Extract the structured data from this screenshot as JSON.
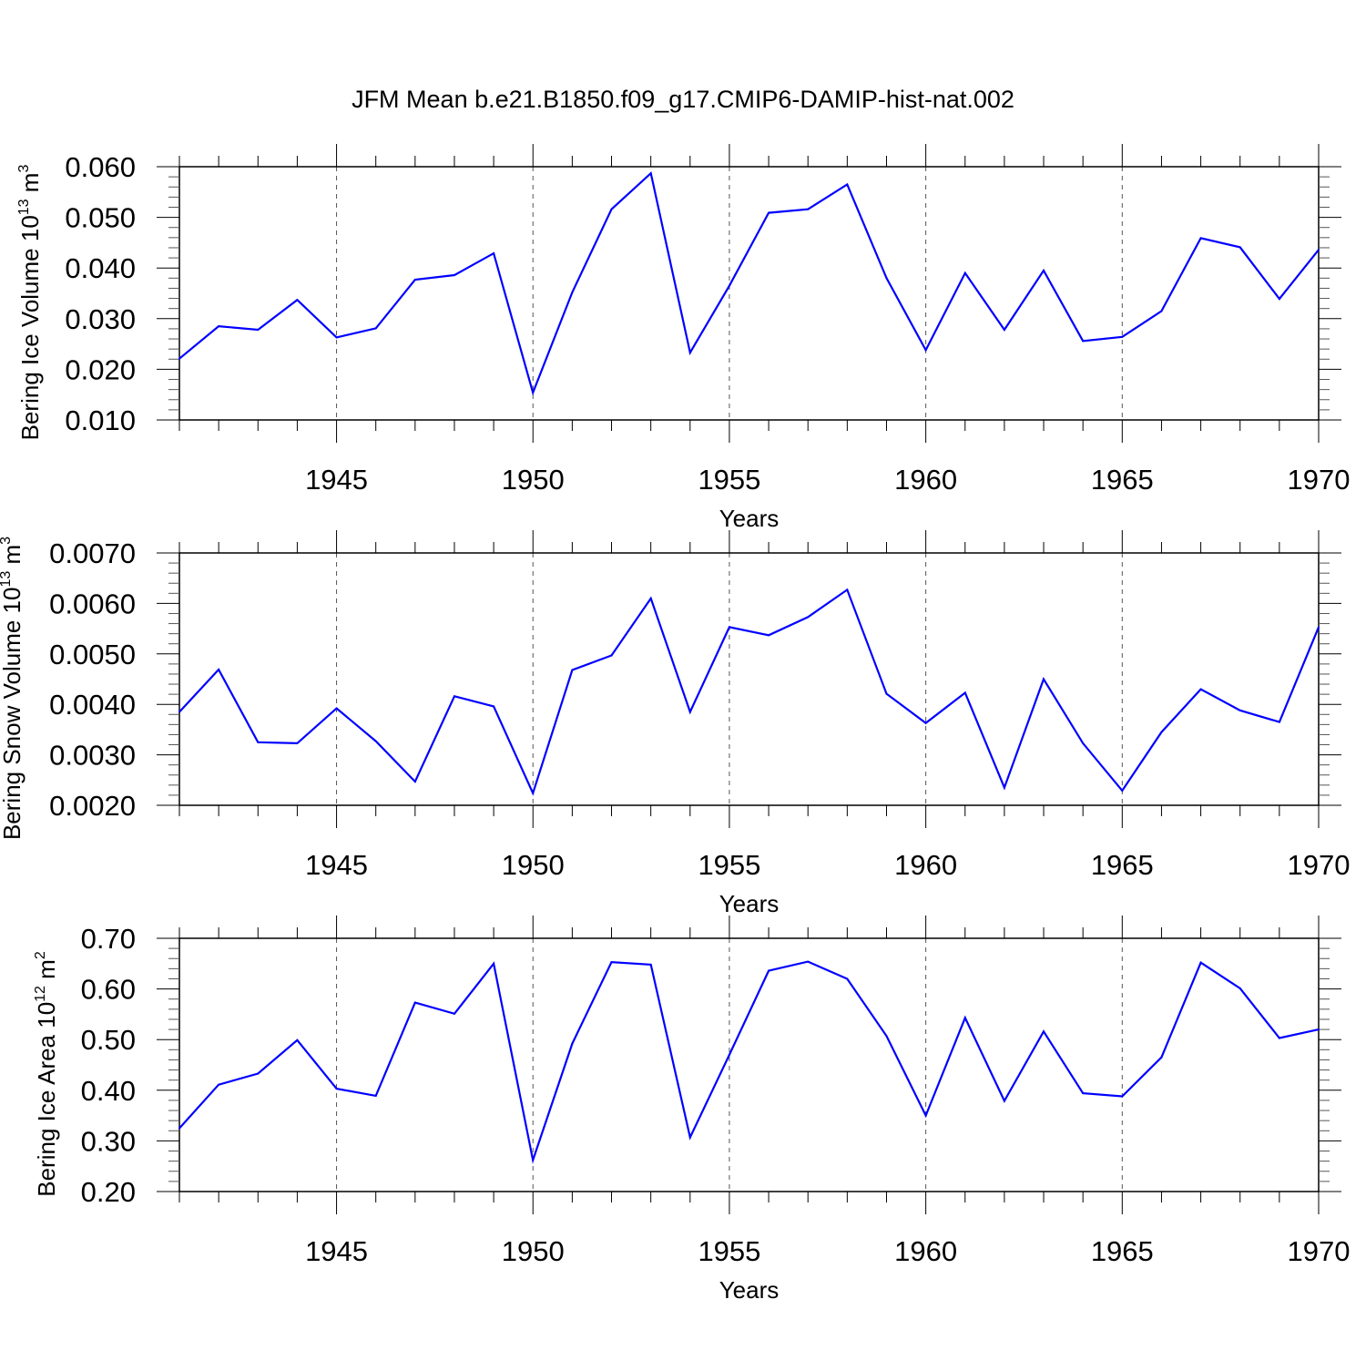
{
  "title": "JFM Mean b.e21.B1850.f09_g17.CMIP6-DAMIP-hist-nat.002",
  "colors": {
    "line": "#0000ff",
    "axis": "#000000",
    "grid": "#555555"
  },
  "chart_data": [
    {
      "type": "line",
      "ylabel": {
        "text": "Bering Ice Volume 10",
        "sup": "13",
        "unit": " m",
        "unit_sup": "3"
      },
      "xlabel": "Years",
      "xlim": [
        1941,
        1970
      ],
      "ylim": [
        0.01,
        0.06
      ],
      "xticks": [
        "1945",
        "1950",
        "1955",
        "1960",
        "1965",
        "1970"
      ],
      "yticks": [
        "0.010",
        "0.020",
        "0.030",
        "0.040",
        "0.050",
        "0.060"
      ],
      "grid": "dashed vertical at major x ticks",
      "x": [
        1941,
        1942,
        1943,
        1944,
        1945,
        1946,
        1947,
        1948,
        1949,
        1950,
        1951,
        1952,
        1953,
        1954,
        1955,
        1956,
        1957,
        1958,
        1959,
        1960,
        1961,
        1962,
        1963,
        1964,
        1965,
        1966,
        1967,
        1968,
        1969,
        1970
      ],
      "series": [
        {
          "values": [
            0.0221,
            0.0285,
            0.0278,
            0.0337,
            0.0263,
            0.0281,
            0.0377,
            0.0386,
            0.0429,
            0.0154,
            0.0352,
            0.0516,
            0.0587,
            0.0233,
            0.0365,
            0.0509,
            0.0516,
            0.0565,
            0.038,
            0.0238,
            0.039,
            0.0278,
            0.0395,
            0.0256,
            0.0264,
            0.0315,
            0.0459,
            0.0441,
            0.0339,
            0.0436
          ]
        }
      ]
    },
    {
      "type": "line",
      "ylabel": {
        "text": "Bering Snow Volume 10",
        "sup": "13",
        "unit": " m",
        "unit_sup": "3"
      },
      "xlabel": "Years",
      "xlim": [
        1941,
        1970
      ],
      "ylim": [
        0.002,
        0.007
      ],
      "xticks": [
        "1945",
        "1950",
        "1955",
        "1960",
        "1965",
        "1970"
      ],
      "yticks": [
        "0.0020",
        "0.0030",
        "0.0040",
        "0.0050",
        "0.0060",
        "0.0070"
      ],
      "grid": "dashed vertical at major x ticks",
      "x": [
        1941,
        1942,
        1943,
        1944,
        1945,
        1946,
        1947,
        1948,
        1949,
        1950,
        1951,
        1952,
        1953,
        1954,
        1955,
        1956,
        1957,
        1958,
        1959,
        1960,
        1961,
        1962,
        1963,
        1964,
        1965,
        1966,
        1967,
        1968,
        1969,
        1970
      ],
      "series": [
        {
          "values": [
            0.00385,
            0.00469,
            0.00325,
            0.00323,
            0.00392,
            0.00327,
            0.00247,
            0.00416,
            0.00396,
            0.00224,
            0.00468,
            0.00497,
            0.0061,
            0.00385,
            0.00553,
            0.00537,
            0.00573,
            0.00627,
            0.00421,
            0.00363,
            0.00423,
            0.00235,
            0.0045,
            0.00323,
            0.00229,
            0.00345,
            0.0043,
            0.00388,
            0.00365,
            0.00553
          ]
        }
      ]
    },
    {
      "type": "line",
      "ylabel": {
        "text": "Bering Ice Area 10",
        "sup": "12",
        "unit": " m",
        "unit_sup": "2"
      },
      "xlabel": "Years",
      "xlim": [
        1941,
        1970
      ],
      "ylim": [
        0.2,
        0.7
      ],
      "xticks": [
        "1945",
        "1950",
        "1955",
        "1960",
        "1965",
        "1970"
      ],
      "yticks": [
        "0.20",
        "0.30",
        "0.40",
        "0.50",
        "0.60",
        "0.70"
      ],
      "grid": "dashed vertical at major x ticks",
      "x": [
        1941,
        1942,
        1943,
        1944,
        1945,
        1946,
        1947,
        1948,
        1949,
        1950,
        1951,
        1952,
        1953,
        1954,
        1955,
        1956,
        1957,
        1958,
        1959,
        1960,
        1961,
        1962,
        1963,
        1964,
        1965,
        1966,
        1967,
        1968,
        1969,
        1970
      ],
      "series": [
        {
          "values": [
            0.325,
            0.411,
            0.433,
            0.499,
            0.403,
            0.389,
            0.573,
            0.551,
            0.65,
            0.262,
            0.492,
            0.653,
            0.648,
            0.307,
            0.47,
            0.636,
            0.654,
            0.62,
            0.507,
            0.35,
            0.543,
            0.379,
            0.516,
            0.394,
            0.388,
            0.465,
            0.652,
            0.601,
            0.503,
            0.52
          ]
        }
      ]
    }
  ]
}
